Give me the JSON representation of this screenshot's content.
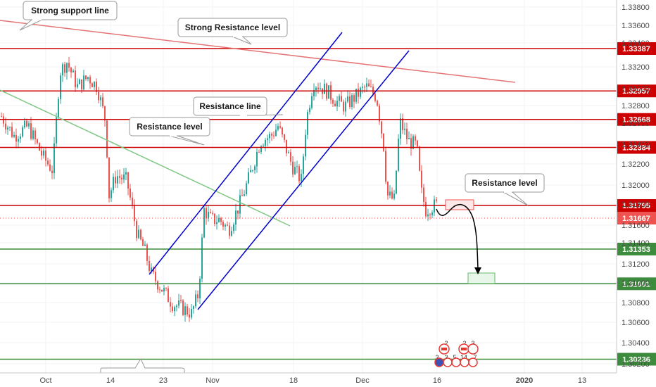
{
  "chart_data": {
    "type": "candlestick",
    "y_axis": {
      "range": [
        1.3025,
        1.3387
      ],
      "labels": [
        "1.33800",
        "1.33600",
        "1.33400",
        "1.33200",
        "1.33000",
        "1.32800",
        "1.32600",
        "1.32400",
        "1.32200",
        "1.32000",
        "1.31800",
        "1.31600",
        "1.31400",
        "1.31200",
        "1.31000",
        "1.30800",
        "1.30600",
        "1.30400",
        "1.30200"
      ]
    },
    "x_axis": {
      "labels": [
        "Oct",
        "14",
        "23",
        "Nov",
        "18",
        "Dec",
        "16",
        "2020",
        "13"
      ]
    },
    "horizontal_levels": [
      {
        "price": 1.33387,
        "label": "1.33387",
        "color": "#cc0000"
      },
      {
        "price": 1.32957,
        "label": "1.32957",
        "color": "#cc0000"
      },
      {
        "price": 1.32668,
        "label": "1.32668",
        "color": "#cc0000"
      },
      {
        "price": 1.32384,
        "label": "1.32384",
        "color": "#cc0000"
      },
      {
        "price": 1.31795,
        "label": "1.31795",
        "color": "#cc0000"
      },
      {
        "price": 1.31353,
        "label": "1.31353",
        "color": "#3d8b3d"
      },
      {
        "price": 1.31001,
        "label": "1.31001",
        "color": "#3d8b3d"
      },
      {
        "price": 1.30236,
        "label": "1.30236",
        "color": "#3d8b3d"
      }
    ],
    "current_price": {
      "price": 1.31667,
      "label": "1.31667",
      "color": "#ef5350"
    },
    "annotations": [
      "Strong support line",
      "Strong Resistance level",
      "Resistance line",
      "Resistance level",
      "Resistance level"
    ],
    "event_markers": {
      "top_row": [
        "2",
        "2",
        "3"
      ],
      "bottom_row": [
        "3",
        "3",
        "5",
        "14",
        "7"
      ]
    },
    "colors": {
      "up": "#26a69a",
      "down": "#ef5350",
      "channel": "#0000cc",
      "trendline_red": "#e57373",
      "trendline_green": "#81c784"
    }
  }
}
